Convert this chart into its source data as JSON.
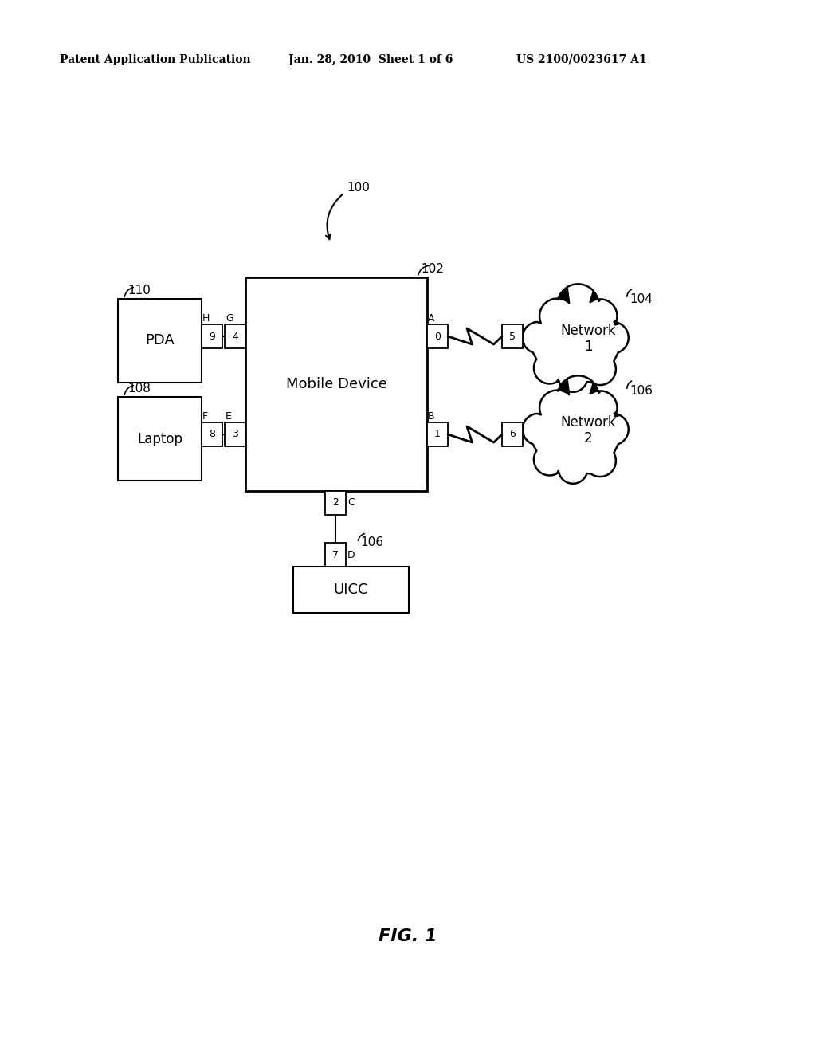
{
  "bg_color": "#ffffff",
  "header_left": "Patent Application Publication",
  "header_mid": "Jan. 28, 2010  Sheet 1 of 6",
  "header_right": "US 2100/0023617 A1",
  "fig_label": "FIG. 1",
  "ref_100": "100",
  "ref_102": "102",
  "ref_104": "104",
  "ref_106_net": "106",
  "ref_108": "108",
  "ref_110": "110",
  "ref_106_uicc": "106",
  "mobile_device_label": "Mobile Device",
  "pda_label": "PDA",
  "laptop_label": "Laptop",
  "uicc_label": "UICC",
  "net1_label": "Network\n1",
  "net2_label": "Network\n2"
}
